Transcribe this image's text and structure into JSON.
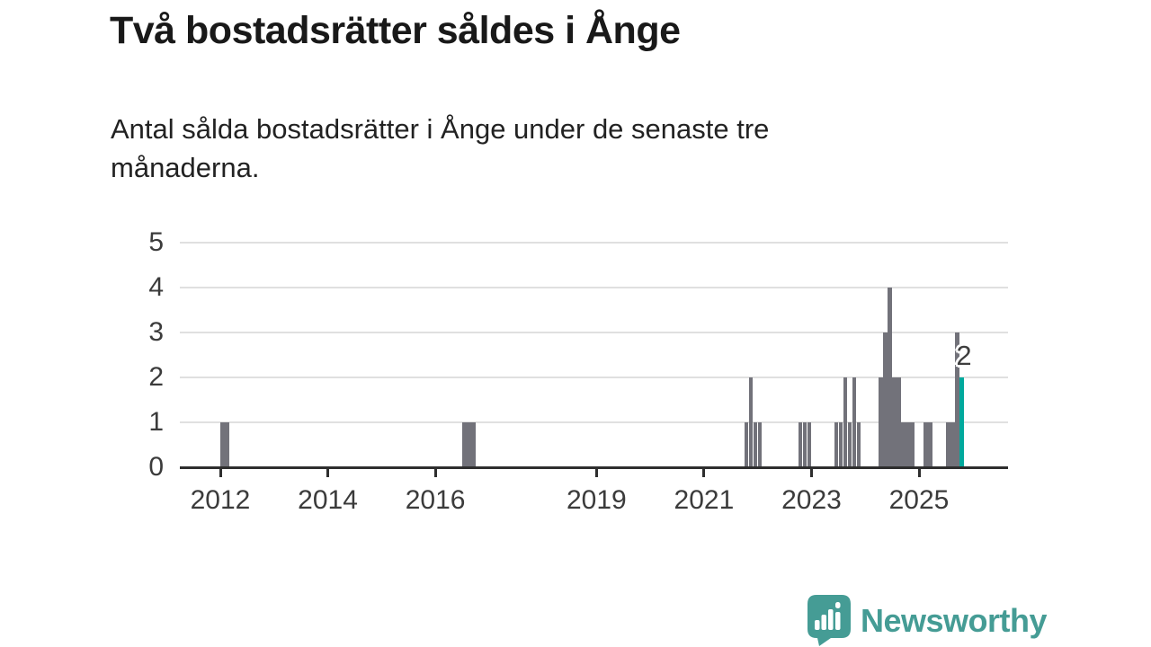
{
  "title": "Två bostadsrätter såldes i Ånge",
  "subtitle_lines": {
    "line1": "Antal sålda bostadsrätter i Ånge under de senaste tre",
    "line2": "månaderna."
  },
  "chart_data": {
    "type": "bar",
    "title": "Två bostadsrätter såldes i Ånge",
    "subtitle": "Antal sålda bostadsrätter i Ånge under de senaste tre månaderna.",
    "xlabel": "",
    "ylabel": "",
    "ylim": [
      0,
      5
    ],
    "y_ticks": [
      0,
      1,
      2,
      3,
      4,
      5
    ],
    "x_ticks": [
      2012,
      2014,
      2016,
      2019,
      2021,
      2023,
      2025
    ],
    "grid": "horizontal",
    "bar_color": "#72727a",
    "highlight_color": "#00a99d",
    "highlight_label": "2",
    "bars": [
      {
        "month": "2012-01",
        "value": 1
      },
      {
        "month": "2012-02",
        "value": 1
      },
      {
        "month": "2016-07",
        "value": 1
      },
      {
        "month": "2016-08",
        "value": 1
      },
      {
        "month": "2016-09",
        "value": 1
      },
      {
        "month": "2021-10",
        "value": 1
      },
      {
        "month": "2021-11",
        "value": 2
      },
      {
        "month": "2021-12",
        "value": 1
      },
      {
        "month": "2022-01",
        "value": 1
      },
      {
        "month": "2022-10",
        "value": 1
      },
      {
        "month": "2022-11",
        "value": 1
      },
      {
        "month": "2022-12",
        "value": 1
      },
      {
        "month": "2023-06",
        "value": 1
      },
      {
        "month": "2023-07",
        "value": 1
      },
      {
        "month": "2023-08",
        "value": 2
      },
      {
        "month": "2023-09",
        "value": 1
      },
      {
        "month": "2023-10",
        "value": 2
      },
      {
        "month": "2023-11",
        "value": 1
      },
      {
        "month": "2024-04",
        "value": 2
      },
      {
        "month": "2024-05",
        "value": 3
      },
      {
        "month": "2024-06",
        "value": 4
      },
      {
        "month": "2024-07",
        "value": 2
      },
      {
        "month": "2024-08",
        "value": 2
      },
      {
        "month": "2024-09",
        "value": 1
      },
      {
        "month": "2024-10",
        "value": 1
      },
      {
        "month": "2024-11",
        "value": 1
      },
      {
        "month": "2025-02",
        "value": 1
      },
      {
        "month": "2025-03",
        "value": 1
      },
      {
        "month": "2025-07",
        "value": 1
      },
      {
        "month": "2025-08",
        "value": 1
      },
      {
        "month": "2025-09",
        "value": 3
      },
      {
        "month": "2025-10",
        "value": 2,
        "highlight": true
      }
    ]
  },
  "branding": {
    "name": "Newsworthy",
    "logo_color": "#459c95",
    "logo_icon": "bar-chart-speech-bubble-icon"
  }
}
